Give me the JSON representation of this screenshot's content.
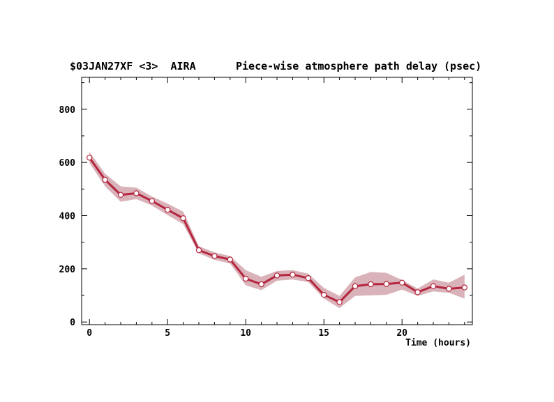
{
  "header": {
    "left_title": "$03JAN27XF <3>  AIRA",
    "right_title": "Piece-wise atmosphere path delay (psec)"
  },
  "chart_data": {
    "type": "line",
    "title": "Piece-wise atmosphere path delay (psec)",
    "xlabel": "Time (hours)",
    "ylabel": "",
    "xlim": [
      -0.5,
      24.5
    ],
    "ylim": [
      -10,
      920
    ],
    "xticks": [
      0,
      5,
      10,
      15,
      20
    ],
    "yticks": [
      0,
      200,
      400,
      600,
      800
    ],
    "grid": false,
    "colors": {
      "line": "#b5263f",
      "band": "#d9b3b9",
      "marker_fill": "#ffffff"
    },
    "series": [
      {
        "x": [
          0,
          1,
          2,
          3,
          4,
          5,
          6,
          7,
          8,
          9,
          10,
          11,
          12,
          13,
          14,
          15,
          16,
          17,
          18,
          19,
          20,
          21,
          22,
          23,
          24
        ],
        "values": [
          618,
          535,
          478,
          484,
          455,
          422,
          390,
          270,
          248,
          235,
          163,
          142,
          175,
          178,
          165,
          102,
          75,
          135,
          142,
          143,
          148,
          112,
          135,
          125,
          130
        ],
        "band_upper": [
          640,
          558,
          510,
          505,
          472,
          445,
          415,
          285,
          262,
          248,
          195,
          170,
          192,
          195,
          182,
          128,
          98,
          168,
          188,
          185,
          158,
          126,
          160,
          148,
          178
        ],
        "band_lower": [
          598,
          510,
          452,
          462,
          438,
          402,
          368,
          258,
          234,
          220,
          138,
          120,
          155,
          160,
          150,
          88,
          52,
          98,
          100,
          102,
          122,
          98,
          115,
          110,
          88
        ]
      }
    ]
  }
}
